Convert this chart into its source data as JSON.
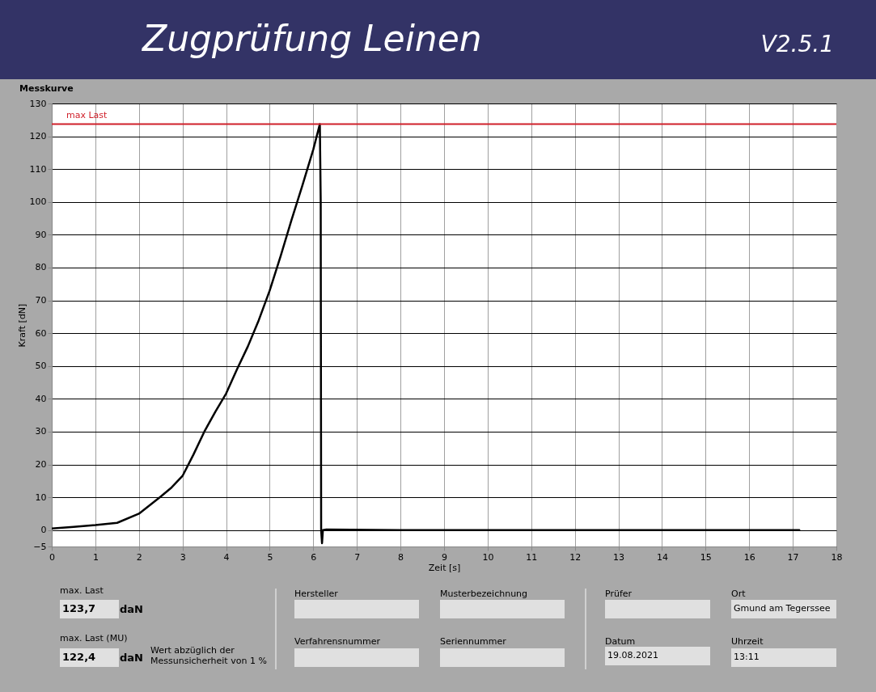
{
  "chart_data": {
    "type": "line",
    "title": "Zugprüfung Leinen",
    "subtitle": "Messkurve",
    "xlabel": "Zeit [s]",
    "ylabel": "Kraft [dN]",
    "xlim": [
      0,
      18
    ],
    "xticks": [
      0,
      1,
      2,
      3,
      4,
      5,
      6,
      7,
      8,
      9,
      10,
      11,
      12,
      13,
      14,
      15,
      16,
      17,
      18
    ],
    "ylim": [
      -5,
      130
    ],
    "yticks": [
      -5,
      0,
      10,
      20,
      30,
      40,
      50,
      60,
      70,
      80,
      90,
      100,
      110,
      120,
      130
    ],
    "grid": true,
    "marker": "none",
    "line_style": "solid",
    "series": [
      {
        "color": "#000000",
        "x": [
          0,
          0.5,
          1,
          1.5,
          2,
          2.5,
          2.75,
          3,
          3.25,
          3.5,
          3.75,
          4,
          4.25,
          4.5,
          4.75,
          5,
          5.25,
          5.5,
          5.75,
          6,
          6.15,
          6.17,
          6.18,
          6.2,
          6.22,
          6.3,
          8,
          10,
          12,
          14,
          16,
          17.15
        ],
        "values": [
          0.5,
          1,
          1.5,
          2.2,
          5,
          10.2,
          13,
          16.5,
          23,
          30,
          36,
          41.6,
          49,
          56,
          64,
          73,
          83.5,
          94.5,
          105,
          116,
          123.7,
          100,
          0,
          -4,
          0,
          0.2,
          0,
          0,
          0,
          0,
          0,
          0
        ]
      }
    ],
    "ref_lines": [
      {
        "axis": "y",
        "value": 123.7,
        "label": "max Last",
        "color": "#d0202a"
      }
    ],
    "annotations": [
      "V2.5.1",
      "max. Last",
      "123,7",
      "daN",
      "max. Last (MU)",
      "122,4",
      "daN",
      "Wert abzüglich der Messunsicherheit von 1 %",
      "Hersteller",
      "Musterbezeichnung",
      "Verfahrensnummer",
      "Seriennummer",
      "Prüfer",
      "Datum",
      "19.08.2021",
      "Ort",
      "Gmund am Tegerssee",
      "Uhrzeit",
      "13:11"
    ]
  }
}
